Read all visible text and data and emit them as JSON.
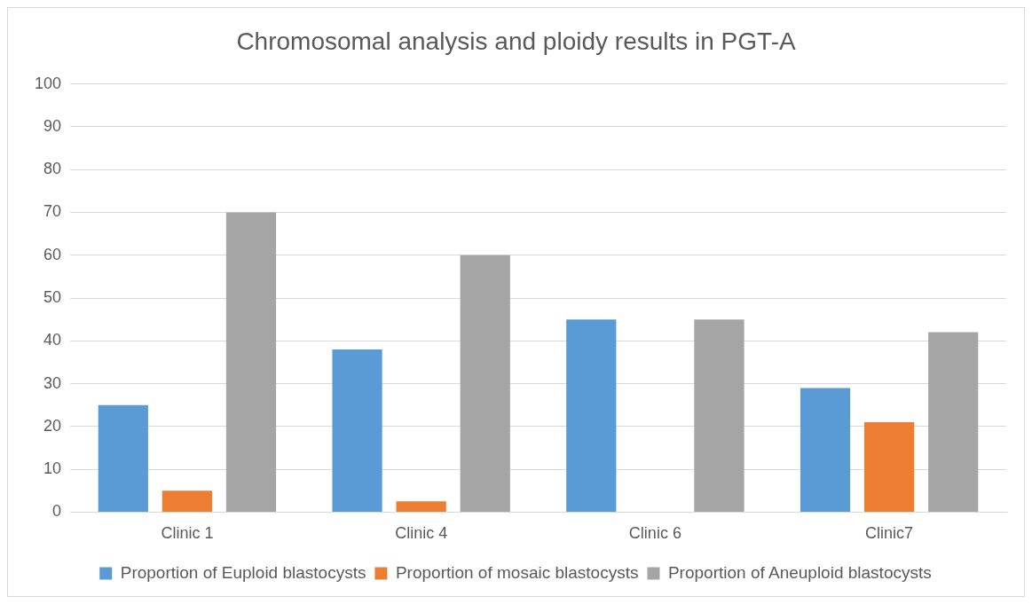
{
  "chart_data": {
    "type": "bar",
    "title": "Chromosomal analysis and ploidy results in PGT-A",
    "categories": [
      "Clinic 1",
      "Clinic 4",
      "Clinic 6",
      "Clinic7"
    ],
    "series": [
      {
        "name": "Proportion of Euploid blastocysts",
        "color": "#5b9bd5",
        "values": [
          25,
          38,
          45,
          29
        ]
      },
      {
        "name": "Proportion of mosaic blastocysts",
        "color": "#ed7d31",
        "values": [
          5,
          2.5,
          0,
          21
        ]
      },
      {
        "name": "Proportion of Aneuploid blastocysts",
        "color": "#a5a5a5",
        "values": [
          70,
          60,
          45,
          42
        ]
      }
    ],
    "ylim": [
      0,
      100
    ],
    "yticks": [
      0,
      10,
      20,
      30,
      40,
      50,
      60,
      70,
      80,
      90,
      100
    ],
    "grid": "y",
    "legend": "bottom"
  }
}
